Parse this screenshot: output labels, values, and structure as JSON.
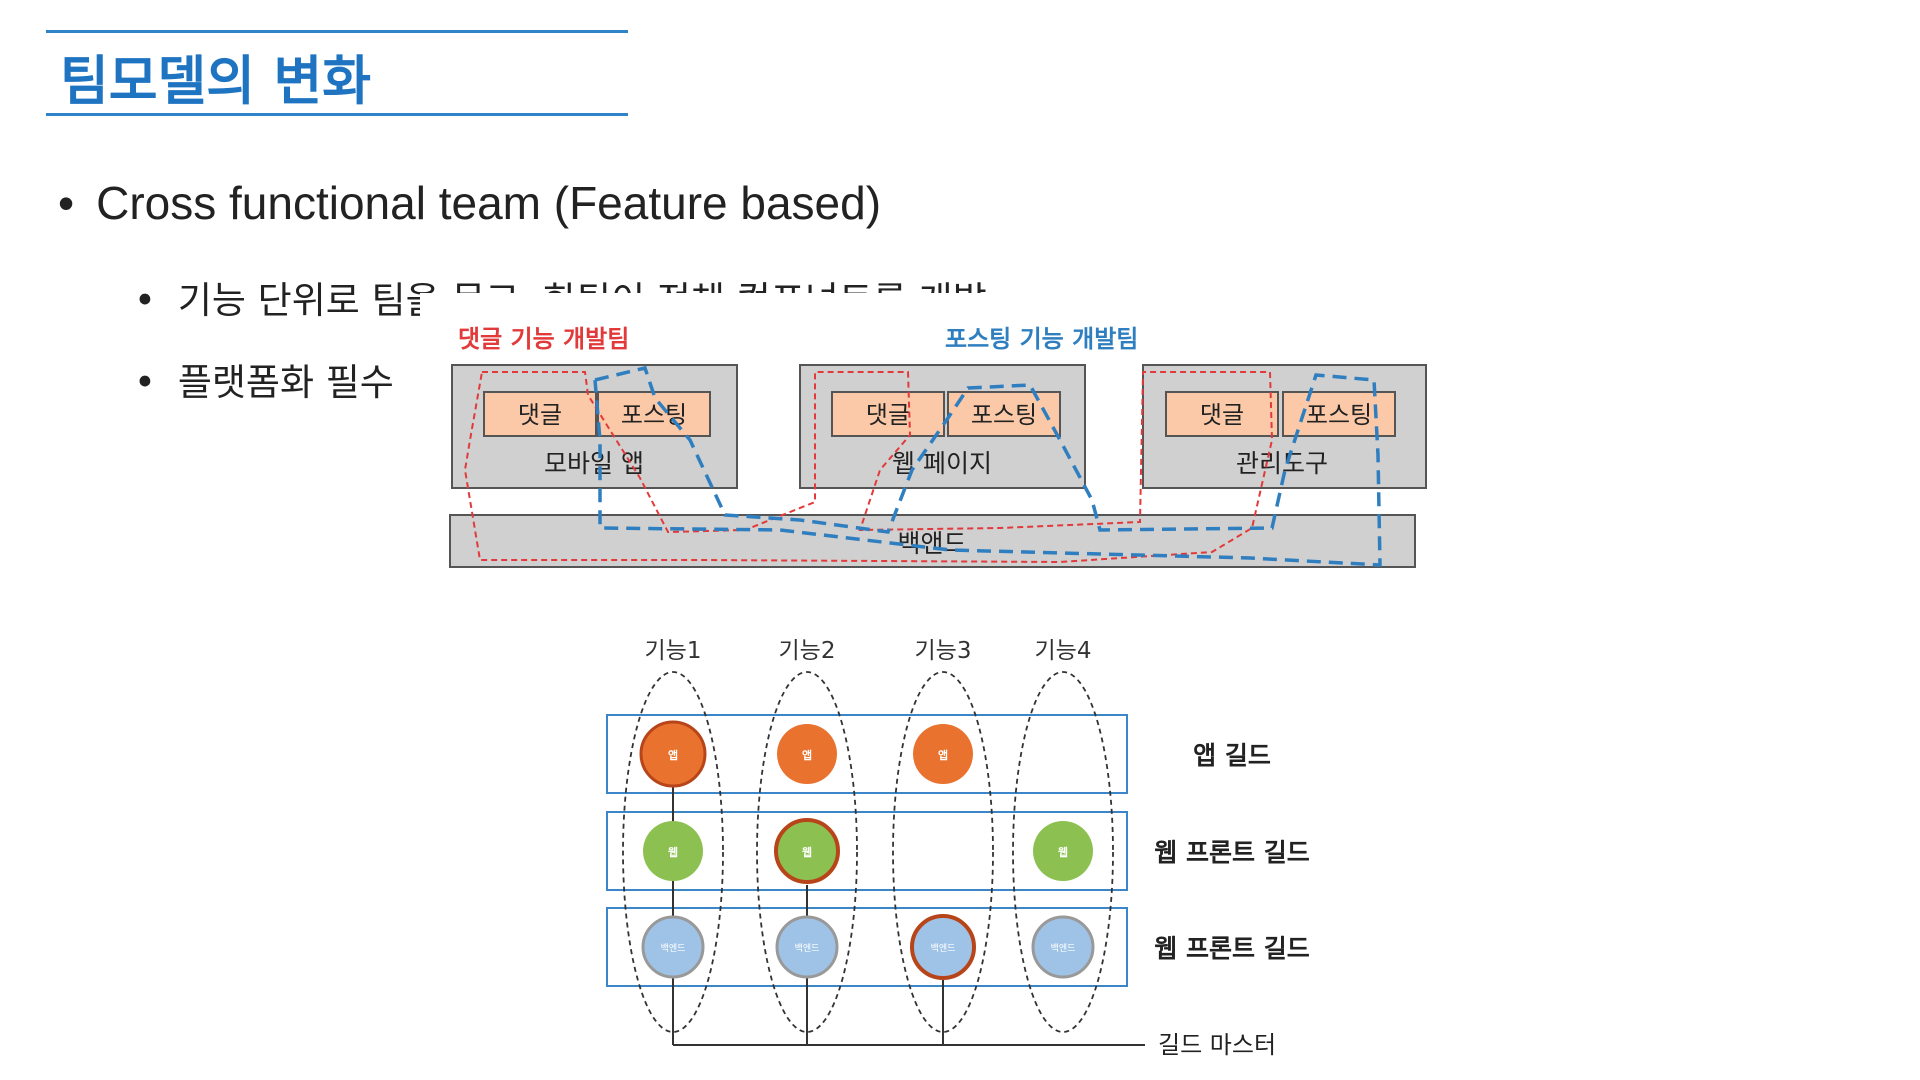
{
  "slide": {
    "title": "팀모델의 변화",
    "bullet_main": "Cross functional team (Feature based)",
    "bullet_sub1": "기능 단위로 팀을 묶고, 한팀이 전체 컴포넌트를 개발",
    "bullet_sub2": "플랫폼화 필수",
    "bullet_glyph": "•"
  },
  "arch_diagram": {
    "team_labels": [
      "댓글 기능 개발팀",
      "포스팅 기능 개발팀"
    ],
    "platforms": [
      {
        "name": "모바일 앱",
        "components": [
          "댓글",
          "포스팅"
        ]
      },
      {
        "name": "웹 페이지",
        "components": [
          "댓글",
          "포스팅"
        ]
      },
      {
        "name": "관리도구",
        "components": [
          "댓글",
          "포스팅"
        ]
      }
    ],
    "backend": "백앤드",
    "colors": {
      "comment_team": "#e23a3a",
      "posting_team": "#2f7fc0",
      "component_fill": "#fcc9a8",
      "box_fill": "#d0d0d0"
    }
  },
  "guild_diagram": {
    "features": [
      "기능1",
      "기능2",
      "기능3",
      "기능4"
    ],
    "guilds": [
      "앱 길드",
      "웹 프론트 길드",
      "웹 프론트 길드"
    ],
    "guild_master": "길드 마스터",
    "node_labels": {
      "app": "앱",
      "web": "웹",
      "backend": "백엔드"
    },
    "colors": {
      "app": "#e8722e",
      "web": "#8cc152",
      "backend": "#9fc3e7",
      "row_border": "#3b86c8"
    }
  }
}
